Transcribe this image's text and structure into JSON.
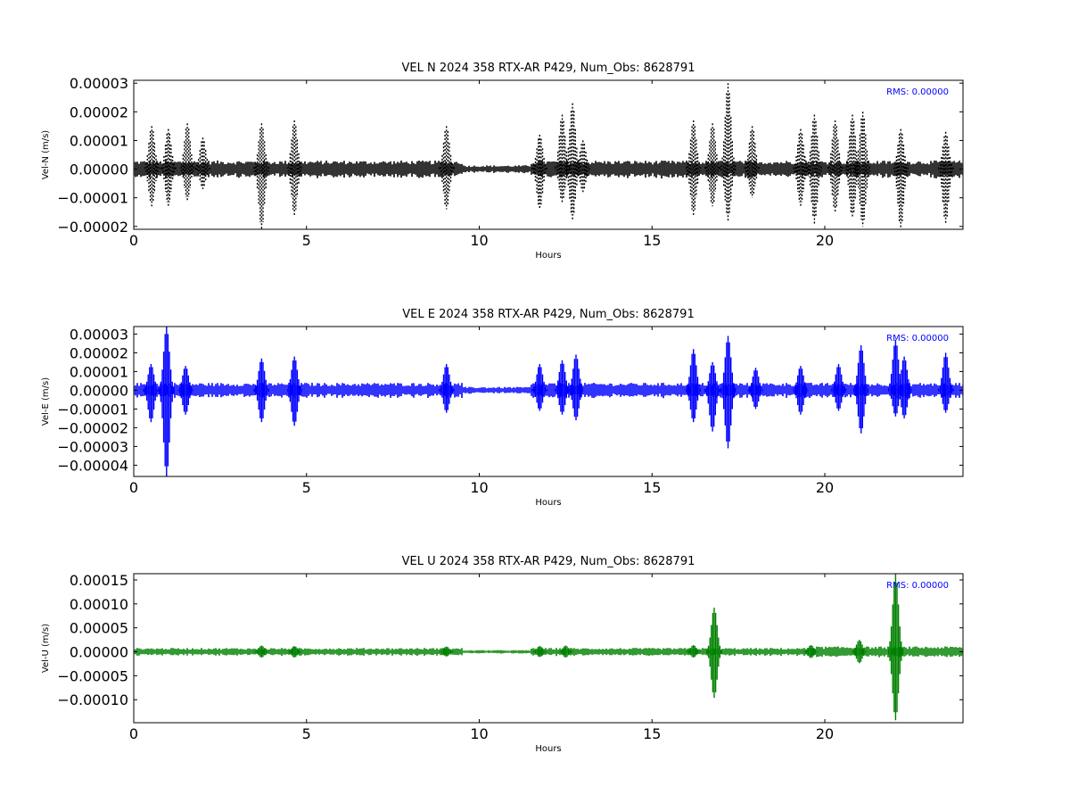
{
  "chart_data": [
    {
      "type": "scatter",
      "title": "VEL N 2024 358 RTX-AR  P429, Num_Obs: 8628791",
      "xlabel": "Hours",
      "ylabel": "Vel-N (m/s)",
      "xlim": [
        0,
        24
      ],
      "ylim": [
        -2.1e-05,
        3.1e-05
      ],
      "xticks": [
        0,
        5,
        10,
        15,
        20
      ],
      "xtick_labels": [
        "0",
        "5",
        "10",
        "15",
        "20"
      ],
      "yticks": [
        -2e-05,
        -1e-05,
        0,
        1e-05,
        2e-05,
        3e-05
      ],
      "ytick_labels": [
        "−0.00002",
        "−0.00001",
        "0.00000",
        "0.00001",
        "0.00002",
        "0.00003"
      ],
      "annotation": "RMS:  0.00000",
      "grid": false,
      "color": "#000000",
      "baseline_amplitude": 3e-06,
      "bursts": [
        {
          "x": 0.52,
          "hi": 1.5e-05,
          "lo": -1.3e-05
        },
        {
          "x": 1.0,
          "hi": 1.4e-05,
          "lo": -1.3e-05
        },
        {
          "x": 1.55,
          "hi": 1.6e-05,
          "lo": -1.1e-05
        },
        {
          "x": 2.0,
          "hi": 1.1e-05,
          "lo": -7e-06
        },
        {
          "x": 3.7,
          "hi": 1.6e-05,
          "lo": -2.1e-05
        },
        {
          "x": 4.65,
          "hi": 1.7e-05,
          "lo": -1.6e-05
        },
        {
          "x": 9.05,
          "hi": 1.5e-05,
          "lo": -1.4e-05
        },
        {
          "x": 11.75,
          "hi": 1.2e-05,
          "lo": -1.4e-05
        },
        {
          "x": 12.4,
          "hi": 1.9e-05,
          "lo": -1.2e-05
        },
        {
          "x": 12.7,
          "hi": 2.3e-05,
          "lo": -1.8e-05
        },
        {
          "x": 13.0,
          "hi": 1e-05,
          "lo": -8e-06
        },
        {
          "x": 16.2,
          "hi": 1.7e-05,
          "lo": -1.6e-05
        },
        {
          "x": 16.75,
          "hi": 1.6e-05,
          "lo": -1.3e-05
        },
        {
          "x": 17.2,
          "hi": 3e-05,
          "lo": -1.8e-05
        },
        {
          "x": 17.9,
          "hi": 1.5e-05,
          "lo": -1e-05
        },
        {
          "x": 19.3,
          "hi": 1.4e-05,
          "lo": -1.3e-05
        },
        {
          "x": 19.7,
          "hi": 1.9e-05,
          "lo": -1.9e-05
        },
        {
          "x": 20.3,
          "hi": 1.7e-05,
          "lo": -1.5e-05
        },
        {
          "x": 20.8,
          "hi": 1.9e-05,
          "lo": -1.7e-05
        },
        {
          "x": 21.1,
          "hi": 2e-05,
          "lo": -2e-05
        },
        {
          "x": 22.2,
          "hi": 1.4e-05,
          "lo": -2.1e-05
        },
        {
          "x": 23.5,
          "hi": 1.3e-05,
          "lo": -1.9e-05
        }
      ]
    },
    {
      "type": "line",
      "title": "VEL E 2024 358 RTX-AR  P429, Num_Obs: 8628791",
      "xlabel": "Hours",
      "ylabel": "Vel-E (m/s)",
      "xlim": [
        0,
        24
      ],
      "ylim": [
        -4.6e-05,
        3.4e-05
      ],
      "xticks": [
        0,
        5,
        10,
        15,
        20
      ],
      "xtick_labels": [
        "0",
        "5",
        "10",
        "15",
        "20"
      ],
      "yticks": [
        -4e-05,
        -3e-05,
        -2e-05,
        -1e-05,
        0,
        1e-05,
        2e-05,
        3e-05
      ],
      "ytick_labels": [
        "−0.00004",
        "−0.00003",
        "−0.00002",
        "−0.00001",
        "0.00000",
        "0.00001",
        "0.00002",
        "0.00003"
      ],
      "annotation": "RMS:  0.00000",
      "grid": false,
      "color": "#0000ff",
      "baseline_amplitude": 4e-06,
      "bursts": [
        {
          "x": 0.5,
          "hi": 1.4e-05,
          "lo": -1.7e-05
        },
        {
          "x": 0.95,
          "hi": 3.4e-05,
          "lo": -4.6e-05
        },
        {
          "x": 1.5,
          "hi": 1.3e-05,
          "lo": -1.3e-05
        },
        {
          "x": 3.7,
          "hi": 1.7e-05,
          "lo": -1.7e-05
        },
        {
          "x": 4.65,
          "hi": 1.8e-05,
          "lo": -1.9e-05
        },
        {
          "x": 9.05,
          "hi": 1.4e-05,
          "lo": -1.2e-05
        },
        {
          "x": 11.75,
          "hi": 1.4e-05,
          "lo": -1.1e-05
        },
        {
          "x": 12.4,
          "hi": 1.6e-05,
          "lo": -1.3e-05
        },
        {
          "x": 12.8,
          "hi": 1.9e-05,
          "lo": -1.6e-05
        },
        {
          "x": 16.2,
          "hi": 2.2e-05,
          "lo": -1.7e-05
        },
        {
          "x": 16.75,
          "hi": 1.5e-05,
          "lo": -2.2e-05
        },
        {
          "x": 17.2,
          "hi": 2.9e-05,
          "lo": -3.1e-05
        },
        {
          "x": 18.0,
          "hi": 1.2e-05,
          "lo": -1e-05
        },
        {
          "x": 19.3,
          "hi": 1.3e-05,
          "lo": -1.3e-05
        },
        {
          "x": 20.4,
          "hi": 1.4e-05,
          "lo": -1.1e-05
        },
        {
          "x": 21.05,
          "hi": 2.4e-05,
          "lo": -2.3e-05
        },
        {
          "x": 22.05,
          "hi": 2.7e-05,
          "lo": -1.4e-05
        },
        {
          "x": 22.3,
          "hi": 1.8e-05,
          "lo": -1.5e-05
        },
        {
          "x": 23.5,
          "hi": 2e-05,
          "lo": -1.2e-05
        }
      ]
    },
    {
      "type": "line",
      "title": "VEL U 2024 358 RTX-AR  P429, Num_Obs: 8628791",
      "xlabel": "Hours",
      "ylabel": "Vel-U (m/s)",
      "xlim": [
        0,
        24
      ],
      "ylim": [
        -0.000148,
        0.000163
      ],
      "xticks": [
        0,
        5,
        10,
        15,
        20
      ],
      "xtick_labels": [
        "0",
        "5",
        "10",
        "15",
        "20"
      ],
      "yticks": [
        -0.0001,
        -5e-05,
        0,
        5e-05,
        0.0001,
        0.00015
      ],
      "ytick_labels": [
        "−0.00010",
        "−0.00005",
        "0.00000",
        "0.00005",
        "0.00010",
        "0.00015"
      ],
      "annotation": "RMS:  0.00000",
      "grid": false,
      "color": "#008000",
      "baseline_amplitude": 8e-06,
      "bursts": [
        {
          "x": 3.7,
          "hi": 1.3e-05,
          "lo": -1.2e-05
        },
        {
          "x": 4.65,
          "hi": 1.2e-05,
          "lo": -1.2e-05
        },
        {
          "x": 9.05,
          "hi": 1.1e-05,
          "lo": -1e-05
        },
        {
          "x": 11.75,
          "hi": 1.2e-05,
          "lo": -1.1e-05
        },
        {
          "x": 12.5,
          "hi": 1.3e-05,
          "lo": -1.2e-05
        },
        {
          "x": 16.2,
          "hi": 1.4e-05,
          "lo": -1.2e-05
        },
        {
          "x": 16.8,
          "hi": 9.2e-05,
          "lo": -9.6e-05
        },
        {
          "x": 19.6,
          "hi": 1.4e-05,
          "lo": -1.3e-05
        },
        {
          "x": 21.0,
          "hi": 2.5e-05,
          "lo": -2.4e-05
        },
        {
          "x": 22.05,
          "hi": 0.000163,
          "lo": -0.000143
        }
      ]
    }
  ]
}
